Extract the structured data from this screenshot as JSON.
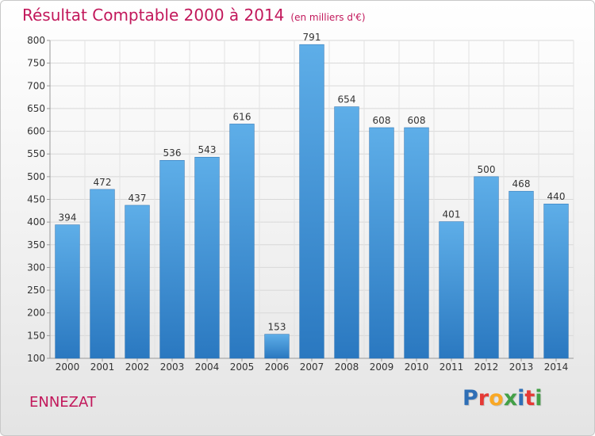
{
  "header": {
    "title": "Résultat Comptable 2000 à 2014",
    "subtitle": "(en milliers d'€)"
  },
  "footer": {
    "place": "ENNEZAT",
    "logo_text": "Proxiti",
    "logo_colors": [
      "#2f6fb6",
      "#e53935",
      "#f9a825",
      "#43a047",
      "#2f6fb6",
      "#e53935",
      "#43a047"
    ]
  },
  "chart_data": {
    "type": "bar",
    "categories": [
      "2000",
      "2001",
      "2002",
      "2003",
      "2004",
      "2005",
      "2006",
      "2007",
      "2008",
      "2009",
      "2010",
      "2011",
      "2012",
      "2013",
      "2014"
    ],
    "values": [
      394,
      472,
      437,
      536,
      543,
      616,
      153,
      791,
      654,
      608,
      608,
      401,
      500,
      468,
      440
    ],
    "title": "Résultat Comptable 2000 à 2014",
    "ylim": [
      100,
      800
    ],
    "yticks": [
      100,
      150,
      200,
      250,
      300,
      350,
      400,
      450,
      500,
      550,
      600,
      650,
      700,
      750,
      800
    ],
    "grid": true,
    "bar_color": "#3f93d8"
  }
}
